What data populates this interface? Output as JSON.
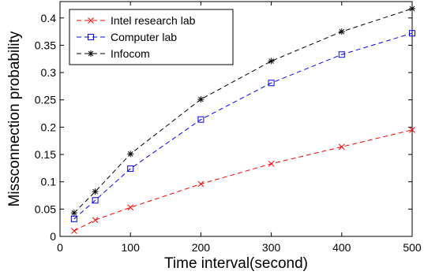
{
  "chart_data": {
    "type": "line",
    "xlabel": "Time interval(second)",
    "ylabel": "Missconnection probability",
    "xlim": [
      0,
      500
    ],
    "ylim": [
      0,
      0.43
    ],
    "xticks": [
      "0",
      "100",
      "200",
      "300",
      "400",
      "500"
    ],
    "yticks": [
      "0",
      "0.05",
      "0.1",
      "0.15",
      "0.2",
      "0.25",
      "0.3",
      "0.35",
      "0.4"
    ],
    "grid": false,
    "legend_position": "top-left",
    "x": [
      20,
      50,
      100,
      200,
      300,
      400,
      500
    ],
    "series": [
      {
        "name": "Intel research lab",
        "color": "#ff0000",
        "marker": "x",
        "values": [
          0.01,
          0.03,
          0.053,
          0.096,
          0.133,
          0.164,
          0.195
        ]
      },
      {
        "name": "Computer lab",
        "color": "#0000ff",
        "marker": "square",
        "values": [
          0.032,
          0.066,
          0.124,
          0.214,
          0.281,
          0.333,
          0.372
        ]
      },
      {
        "name": "Infocom",
        "color": "#000000",
        "marker": "asterisk",
        "values": [
          0.043,
          0.082,
          0.151,
          0.251,
          0.321,
          0.375,
          0.417
        ]
      }
    ]
  }
}
